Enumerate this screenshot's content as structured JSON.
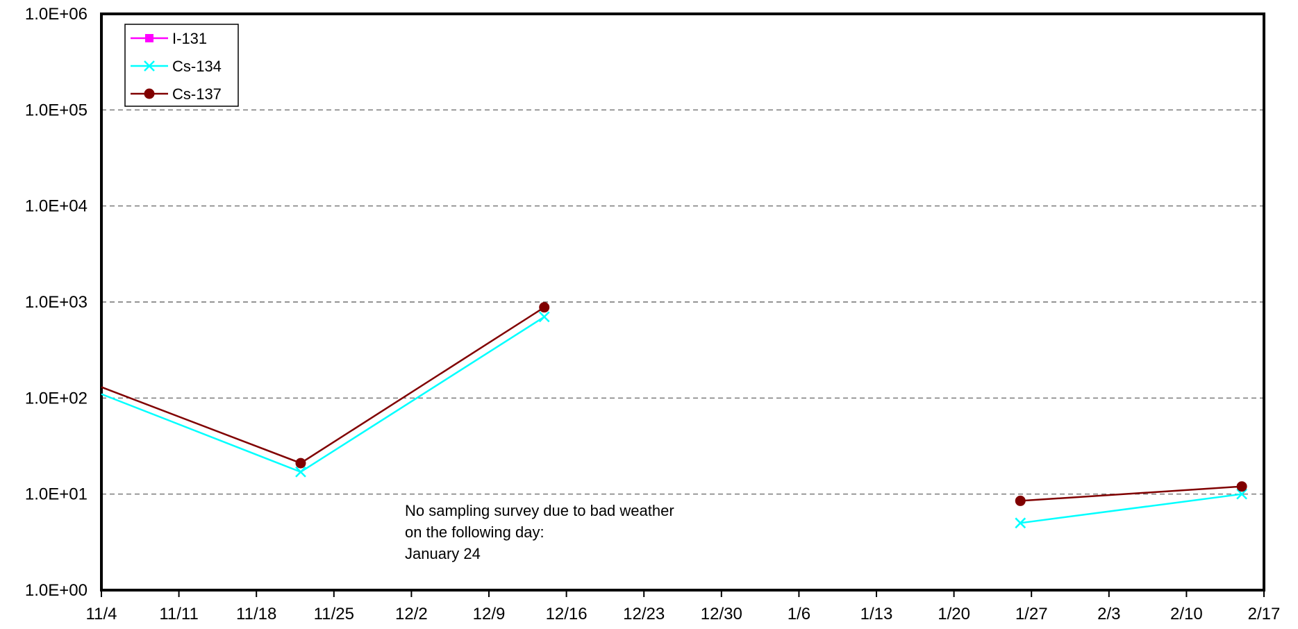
{
  "chart_data": {
    "type": "line",
    "title": "",
    "xlabel": "",
    "ylabel": "",
    "y_scale": "log",
    "ylim": [
      1,
      1000000
    ],
    "y_ticks": [
      "1.0E+00",
      "1.0E+01",
      "1.0E+02",
      "1.0E+03",
      "1.0E+04",
      "1.0E+05",
      "1.0E+06"
    ],
    "x_ticks": [
      "11/4",
      "11/11",
      "11/18",
      "11/25",
      "12/2",
      "12/9",
      "12/16",
      "12/23",
      "12/30",
      "1/6",
      "1/13",
      "1/20",
      "1/27",
      "2/3",
      "2/10",
      "2/17"
    ],
    "grid": "horizontal-dashed",
    "legend_position": "top-left",
    "series": [
      {
        "name": "I-131",
        "color": "#ff00ff",
        "marker": "square",
        "segments": []
      },
      {
        "name": "Cs-134",
        "color": "#00ffff",
        "marker": "x",
        "segments": [
          [
            {
              "x": "11/4",
              "y": 110,
              "marker": false
            },
            {
              "x": "11/22",
              "y": 17
            },
            {
              "x": "12/14",
              "y": 700
            }
          ],
          [
            {
              "x": "1/26",
              "y": 5
            },
            {
              "x": "2/15",
              "y": 10
            }
          ]
        ]
      },
      {
        "name": "Cs-137",
        "color": "#800000",
        "marker": "circle",
        "segments": [
          [
            {
              "x": "11/4",
              "y": 130,
              "marker": false
            },
            {
              "x": "11/22",
              "y": 21
            },
            {
              "x": "12/14",
              "y": 880
            }
          ],
          [
            {
              "x": "1/26",
              "y": 8.5
            },
            {
              "x": "2/15",
              "y": 12
            }
          ]
        ]
      }
    ],
    "annotation": {
      "lines": [
        "No sampling survey due to bad weather",
        "on the following day:",
        "January 24"
      ]
    }
  }
}
